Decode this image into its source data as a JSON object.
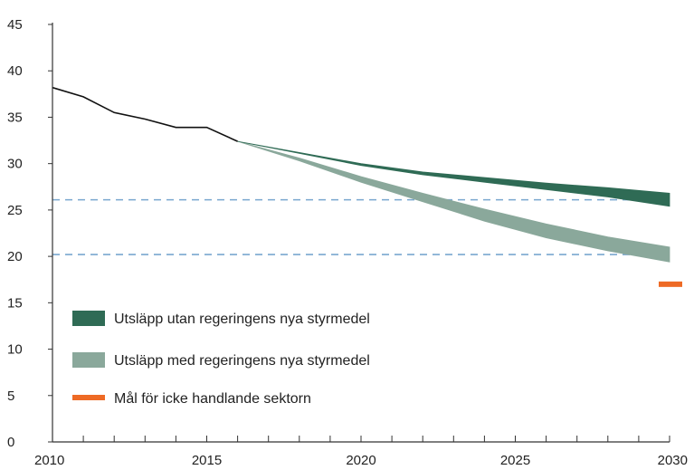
{
  "colors": {
    "dark_band": "#2f6b55",
    "light_band": "#8aa89b",
    "history_line": "#111111",
    "ref_lines": "#7aa7cf",
    "target": "#ee6a25",
    "axis": "#333333"
  },
  "chart_data": {
    "type": "area",
    "title": "",
    "xlabel": "",
    "ylabel": "",
    "xlim": [
      2010,
      2030
    ],
    "ylim": [
      0,
      45
    ],
    "x_ticks": [
      2010,
      2015,
      2020,
      2025,
      2030
    ],
    "y_ticks": [
      0,
      5,
      10,
      15,
      20,
      25,
      30,
      35,
      40,
      45
    ],
    "x_tick_labels": [
      "2010",
      "2015",
      "2020",
      "2025",
      "2030"
    ],
    "y_tick_labels": [
      "0",
      "5",
      "10",
      "15",
      "20",
      "25",
      "30",
      "35",
      "40",
      "45"
    ],
    "grid": false,
    "legend_position": "bottom-left",
    "historical": {
      "x": [
        2010,
        2011,
        2012,
        2013,
        2014,
        2015,
        2016
      ],
      "y": [
        38.2,
        37.2,
        35.5,
        34.8,
        33.9,
        33.9,
        32.4
      ]
    },
    "series": [
      {
        "name": "Utsläpp utan regeringens nya styrmedel",
        "x": [
          2016,
          2018,
          2020,
          2022,
          2024,
          2026,
          2028,
          2030
        ],
        "upper": [
          32.4,
          31.2,
          30.0,
          29.1,
          28.5,
          27.9,
          27.4,
          26.8
        ],
        "lower": [
          32.4,
          31.1,
          29.8,
          28.8,
          28.0,
          27.2,
          26.4,
          25.4
        ]
      },
      {
        "name": "Utsläpp med regeringens nya styrmedel",
        "x": [
          2016,
          2018,
          2020,
          2022,
          2024,
          2026,
          2028,
          2030
        ],
        "upper": [
          32.4,
          30.6,
          28.6,
          26.8,
          25.1,
          23.5,
          22.1,
          21.0
        ],
        "lower": [
          32.4,
          30.3,
          28.0,
          25.9,
          23.8,
          22.0,
          20.6,
          19.4
        ]
      }
    ],
    "reference_lines": [
      26.1,
      20.2
    ],
    "target": {
      "name": "Mål för icke handlande sektorn",
      "x": 2030,
      "y": 17.0
    }
  }
}
